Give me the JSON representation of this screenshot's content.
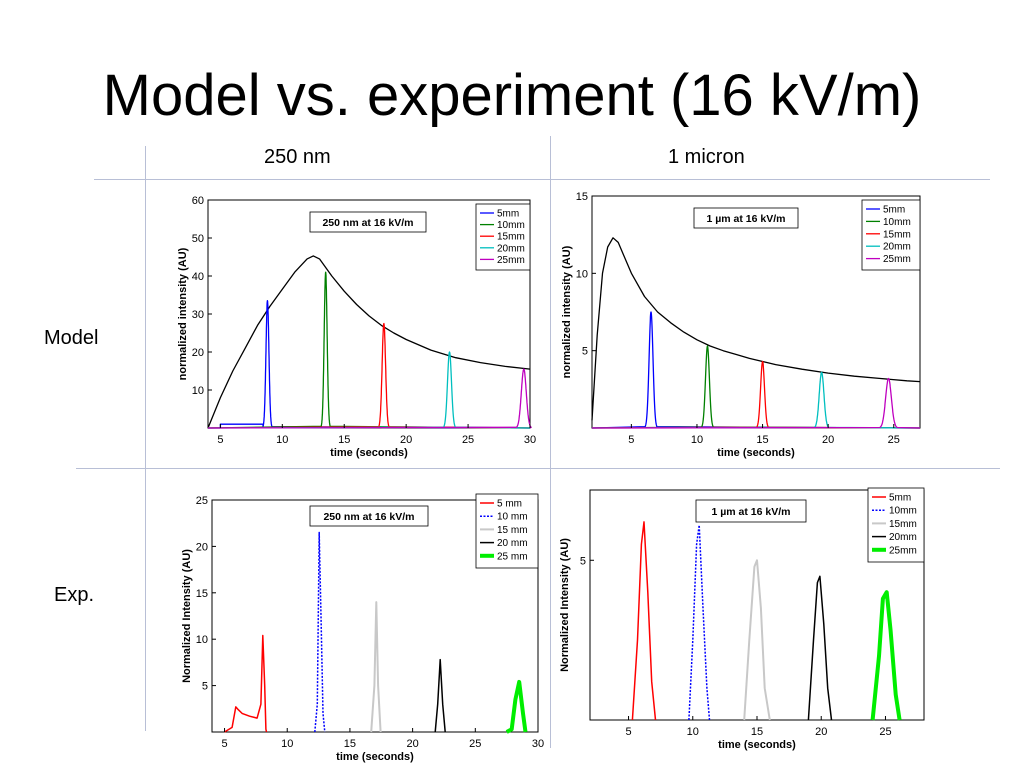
{
  "slide": {
    "title": "Model vs. experiment (16 kV/m)",
    "col_headers": [
      "250 nm",
      "1 micron"
    ],
    "row_headers": [
      "Model",
      "Exp."
    ]
  },
  "chart_data": [
    {
      "type": "line",
      "title": "250 nm at 16 kV/m",
      "xlabel": "time (seconds)",
      "ylabel": "normalized intensity (AU)",
      "xlim": [
        4,
        30
      ],
      "ylim": [
        0,
        60
      ],
      "xticks": [
        5,
        10,
        15,
        20,
        25,
        30
      ],
      "yticks": [
        10,
        20,
        30,
        40,
        50,
        60
      ],
      "grid": false,
      "legend_position": "top-right",
      "series": [
        {
          "name": "",
          "color": "#000000",
          "kind": "curve",
          "x": [
            4,
            5,
            6,
            7,
            8,
            9,
            10,
            11,
            12,
            12.5,
            13,
            14,
            15,
            16,
            17,
            18,
            19,
            20,
            22,
            24,
            26,
            28,
            30
          ],
          "y": [
            0,
            8,
            15,
            21,
            27,
            32,
            36.5,
            41,
            44.5,
            45.3,
            44.5,
            40,
            36,
            32.5,
            29.5,
            27,
            25,
            23.3,
            20.5,
            18.5,
            17.2,
            16.2,
            15.5
          ]
        },
        {
          "name": "5mm",
          "color": "#0000ff",
          "kind": "detector",
          "plateau": [
            5,
            8.4,
            1
          ],
          "peak": 8.8,
          "height": 33.5,
          "width": 0.12
        },
        {
          "name": "10mm",
          "color": "#008000",
          "kind": "detector",
          "peak": 13.5,
          "height": 41,
          "width": 0.12
        },
        {
          "name": "15mm",
          "color": "#ff0000",
          "kind": "detector",
          "peak": 18.2,
          "height": 27.5,
          "width": 0.14
        },
        {
          "name": "20mm",
          "color": "#00bfbf",
          "kind": "detector",
          "peak": 23.5,
          "height": 20,
          "width": 0.16
        },
        {
          "name": "25mm",
          "color": "#bf00bf",
          "kind": "detector",
          "peak": 29.5,
          "height": 15.5,
          "width": 0.2
        }
      ]
    },
    {
      "type": "line",
      "title": "1 µm at 16 kV/m",
      "xlabel": "time (seconds)",
      "ylabel": "normalized intensity (AU)",
      "xlim": [
        2,
        27
      ],
      "ylim": [
        0,
        15
      ],
      "xticks": [
        5,
        10,
        15,
        20,
        25
      ],
      "yticks": [
        5,
        10,
        15
      ],
      "grid": false,
      "legend_position": "top-right",
      "series": [
        {
          "name": "",
          "color": "#000000",
          "kind": "curve",
          "x": [
            2,
            2.4,
            2.8,
            3.2,
            3.6,
            4,
            4.5,
            5,
            6,
            7,
            8,
            9,
            10,
            11,
            12,
            13,
            14,
            15,
            16,
            18,
            20,
            22,
            24,
            26,
            27
          ],
          "y": [
            0.5,
            6,
            10,
            11.7,
            12.3,
            12,
            11,
            10,
            8.5,
            7.5,
            6.8,
            6.2,
            5.7,
            5.3,
            5,
            4.75,
            4.5,
            4.3,
            4.1,
            3.8,
            3.55,
            3.35,
            3.2,
            3.05,
            3
          ]
        },
        {
          "name": "5mm",
          "color": "#0000ff",
          "kind": "detector",
          "peak": 6.5,
          "height": 7.5,
          "width": 0.15
        },
        {
          "name": "10mm",
          "color": "#008000",
          "kind": "detector",
          "peak": 10.8,
          "height": 5.3,
          "width": 0.15
        },
        {
          "name": "15mm",
          "color": "#ff0000",
          "kind": "detector",
          "peak": 15,
          "height": 4.3,
          "width": 0.15
        },
        {
          "name": "20mm",
          "color": "#00bfbf",
          "kind": "detector",
          "peak": 19.5,
          "height": 3.6,
          "width": 0.18
        },
        {
          "name": "25mm",
          "color": "#bf00bf",
          "kind": "detector",
          "peak": 24.6,
          "height": 3.2,
          "width": 0.22
        }
      ]
    },
    {
      "type": "line",
      "title": "250 nm at 16 kV/m",
      "xlabel": "time (seconds)",
      "ylabel": "Normalized Intensity (AU)",
      "xlim": [
        4,
        30
      ],
      "ylim": [
        0,
        25
      ],
      "xticks": [
        5,
        10,
        15,
        20,
        25,
        30
      ],
      "yticks": [
        5,
        10,
        15,
        20,
        25
      ],
      "grid": false,
      "legend_position": "top-right",
      "series": [
        {
          "name": "5 mm",
          "color": "#ff0000",
          "dash": "",
          "lw": 1.5,
          "x": [
            5,
            5.6,
            5.9,
            6.1,
            6.4,
            7,
            7.6,
            7.9,
            8.05,
            8.2,
            8.3,
            8.35
          ],
          "y": [
            0,
            0.5,
            2.7,
            2.4,
            2,
            1.7,
            1.5,
            3,
            10.4,
            5,
            0.3,
            0
          ]
        },
        {
          "name": "10 mm",
          "color": "#0000ff",
          "dash": "2,1.5",
          "lw": 1.5,
          "x": [
            12.2,
            12.4,
            12.55,
            12.7,
            12.85,
            13
          ],
          "y": [
            0,
            3,
            21.5,
            12,
            2,
            0
          ]
        },
        {
          "name": "15 mm",
          "color": "#c8c8c8",
          "dash": "",
          "lw": 2,
          "x": [
            16.7,
            16.95,
            17.1,
            17.25,
            17.45
          ],
          "y": [
            0,
            5,
            14,
            5,
            0
          ]
        },
        {
          "name": "20 mm",
          "color": "#000000",
          "dash": "",
          "lw": 1.5,
          "x": [
            21.8,
            22,
            22.2,
            22.4,
            22.6
          ],
          "y": [
            0,
            3,
            7.8,
            3,
            0
          ]
        },
        {
          "name": "25 mm",
          "color": "#00ee00",
          "dash": "",
          "lw": 4,
          "x": [
            27.5,
            27.9,
            28.2,
            28.5,
            28.8,
            29
          ],
          "y": [
            0,
            0.3,
            3.5,
            5.4,
            2,
            0
          ]
        }
      ]
    },
    {
      "type": "line",
      "title": "1 µm at 16 kV/m",
      "xlabel": "time (seconds)",
      "ylabel": "Normalized Intensity (AU)",
      "xlim": [
        2,
        28
      ],
      "ylim": [
        0,
        7.2
      ],
      "xticks": [
        5,
        10,
        15,
        20,
        25
      ],
      "yticks": [
        5
      ],
      "grid": false,
      "legend_position": "top-right",
      "series": [
        {
          "name": "5mm",
          "color": "#ff0000",
          "dash": "",
          "lw": 1.5,
          "x": [
            5.3,
            5.7,
            6,
            6.2,
            6.5,
            6.8,
            7.1
          ],
          "y": [
            0,
            2.5,
            5.5,
            6.2,
            4,
            1.2,
            0
          ]
        },
        {
          "name": "10mm",
          "color": "#0000ff",
          "dash": "2,1.5",
          "lw": 1.5,
          "x": [
            9.7,
            10,
            10.3,
            10.5,
            10.8,
            11.1,
            11.3
          ],
          "y": [
            0,
            2.5,
            5.5,
            6.1,
            3.5,
            1,
            0
          ]
        },
        {
          "name": "15mm",
          "color": "#c8c8c8",
          "dash": "",
          "lw": 2,
          "x": [
            14,
            14.4,
            14.8,
            15,
            15.3,
            15.6,
            16
          ],
          "y": [
            0,
            2.5,
            4.8,
            5,
            3.5,
            1,
            0
          ]
        },
        {
          "name": "20mm",
          "color": "#000000",
          "dash": "",
          "lw": 1.5,
          "x": [
            19,
            19.4,
            19.7,
            19.9,
            20.2,
            20.5,
            20.8
          ],
          "y": [
            0,
            2.5,
            4.3,
            4.5,
            3,
            1,
            0
          ]
        },
        {
          "name": "25mm",
          "color": "#00ee00",
          "dash": "",
          "lw": 4,
          "x": [
            24,
            24.5,
            24.8,
            25.1,
            25.4,
            25.8,
            26.1
          ],
          "y": [
            0,
            2,
            3.8,
            4,
            2.8,
            0.8,
            0
          ]
        }
      ]
    }
  ]
}
